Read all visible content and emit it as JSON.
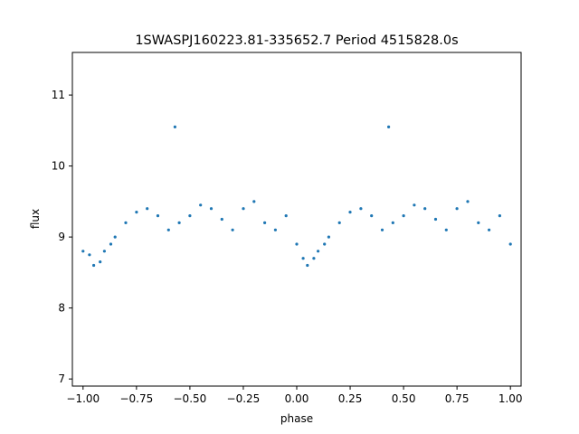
{
  "chart_data": {
    "type": "scatter",
    "title": "1SWASPJ160223.81-335652.7 Period 4515828.0s",
    "xlabel": "phase",
    "ylabel": "flux",
    "xlim": [
      -1.05,
      1.05
    ],
    "ylim": [
      6.9,
      11.6
    ],
    "x_ticks": [
      -1.0,
      -0.75,
      -0.5,
      -0.25,
      0.0,
      0.25,
      0.5,
      0.75,
      1.0
    ],
    "x_tick_labels": [
      "−1.00",
      "−0.75",
      "−0.50",
      "−0.25",
      "0.00",
      "0.25",
      "0.50",
      "0.75",
      "1.00"
    ],
    "y_ticks": [
      7,
      8,
      9,
      10,
      11
    ],
    "y_tick_labels": [
      "7",
      "8",
      "9",
      "10",
      "11"
    ],
    "grid": false,
    "legend": "none",
    "marker_color": "#1f77b4",
    "series": [
      {
        "x": [
          -1.0,
          -0.97,
          -0.95,
          -0.92,
          -0.9,
          -0.87,
          -0.85,
          -0.8,
          -0.75,
          -0.7,
          -0.65,
          -0.6,
          -0.57,
          -0.55,
          -0.5,
          -0.45,
          -0.4,
          -0.35,
          -0.3,
          -0.25,
          -0.2,
          -0.15,
          -0.1,
          -0.05,
          0.0,
          0.03,
          0.05,
          0.08,
          0.1,
          0.13,
          0.15,
          0.2,
          0.25,
          0.3,
          0.35,
          0.4,
          0.43,
          0.45,
          0.5,
          0.55,
          0.6,
          0.65,
          0.7,
          0.75,
          0.8,
          0.85,
          0.9,
          0.95,
          1.0
        ],
        "y": [
          8.8,
          8.75,
          8.6,
          8.65,
          8.8,
          8.9,
          9.0,
          9.2,
          9.35,
          9.4,
          9.3,
          9.1,
          10.55,
          9.2,
          9.3,
          9.45,
          9.4,
          9.25,
          9.1,
          9.4,
          9.5,
          9.2,
          9.1,
          9.3,
          8.9,
          8.7,
          8.6,
          8.7,
          8.8,
          8.9,
          9.0,
          9.2,
          9.35,
          9.4,
          9.3,
          9.1,
          10.55,
          9.2,
          9.3,
          9.45,
          9.4,
          9.25,
          9.1,
          9.4,
          9.5,
          9.2,
          9.1,
          9.3,
          8.9
        ]
      }
    ]
  }
}
